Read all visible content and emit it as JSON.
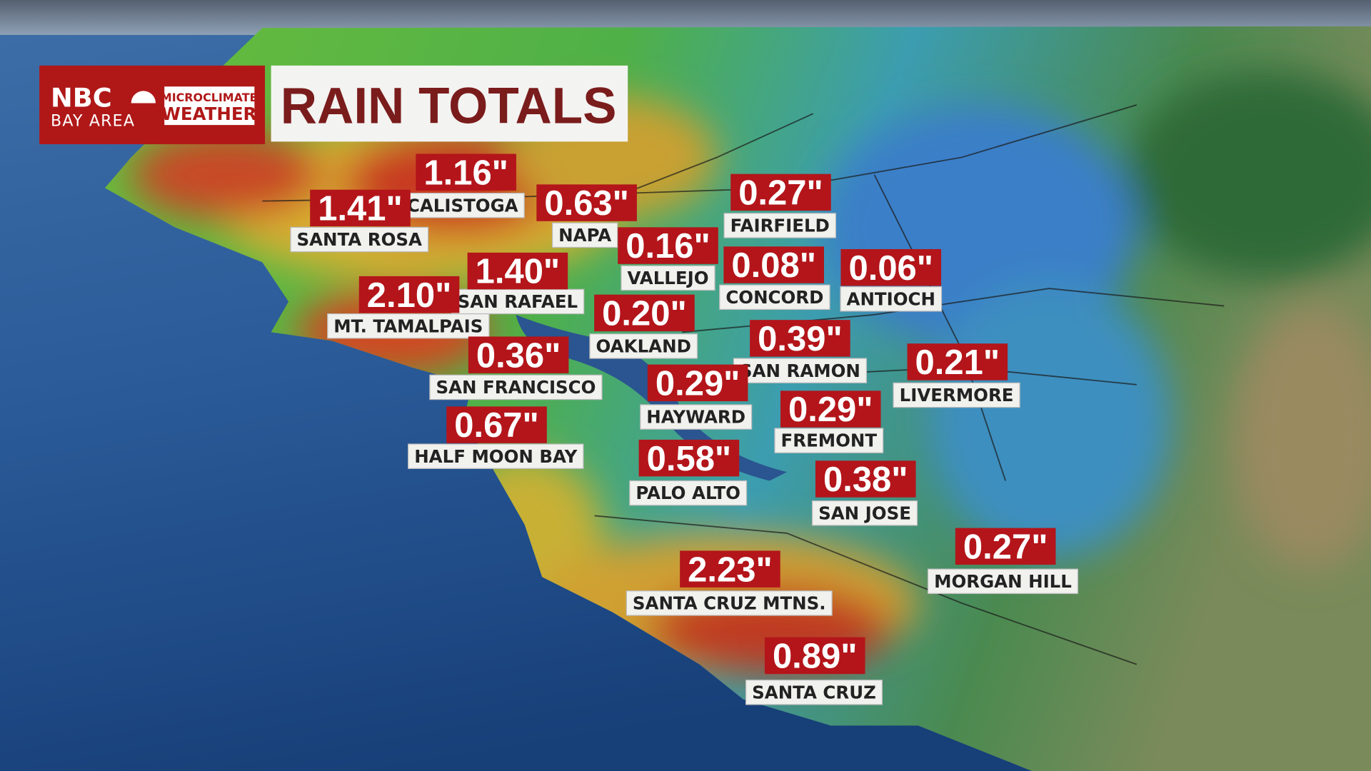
{
  "header": {
    "brand": "NBC",
    "brand_sub": "BAY AREA",
    "badge_top": "MICROCLIMATE",
    "badge_bottom": "WEATHER",
    "title": "RAIN TOTALS"
  },
  "stations": [
    {
      "name": "CALISTOGA",
      "total": "1.16\""
    },
    {
      "name": "SANTA ROSA",
      "total": "1.41\""
    },
    {
      "name": "NAPA",
      "total": "0.63\""
    },
    {
      "name": "FAIRFIELD",
      "total": "0.27\""
    },
    {
      "name": "VALLEJO",
      "total": "0.16\""
    },
    {
      "name": "SAN RAFAEL",
      "total": "1.40\""
    },
    {
      "name": "CONCORD",
      "total": "0.08\""
    },
    {
      "name": "ANTIOCH",
      "total": "0.06\""
    },
    {
      "name": "MT. TAMALPAIS",
      "total": "2.10\""
    },
    {
      "name": "OAKLAND",
      "total": "0.20\""
    },
    {
      "name": "SAN RAMON",
      "total": "0.39\""
    },
    {
      "name": "SAN FRANCISCO",
      "total": "0.36\""
    },
    {
      "name": "LIVERMORE",
      "total": "0.21\""
    },
    {
      "name": "HAYWARD",
      "total": "0.29\""
    },
    {
      "name": "FREMONT",
      "total": "0.29\""
    },
    {
      "name": "HALF MOON BAY",
      "total": "0.67\""
    },
    {
      "name": "PALO ALTO",
      "total": "0.58\""
    },
    {
      "name": "SAN JOSE",
      "total": "0.38\""
    },
    {
      "name": "MORGAN HILL",
      "total": "0.27\""
    },
    {
      "name": "SANTA CRUZ MTNS.",
      "total": "2.23\""
    },
    {
      "name": "SANTA CRUZ",
      "total": "0.89\""
    }
  ]
}
